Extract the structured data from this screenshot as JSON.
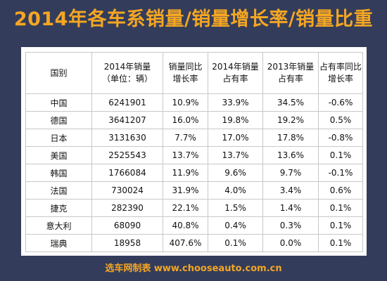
{
  "title": "2014年各车系销量/销量增长率/销量比重",
  "columns": [
    {
      "line1": "国别",
      "line2": ""
    },
    {
      "line1": "2014年销量",
      "line2": "（单位：辆）"
    },
    {
      "line1": "销量同比",
      "line2": "增长率"
    },
    {
      "line1": "2014年销量",
      "line2": "占有率"
    },
    {
      "line1": "2013年销量",
      "line2": "占有率"
    },
    {
      "line1": "占有率同比",
      "line2": "增长率"
    }
  ],
  "rows": [
    [
      "中国",
      "6241901",
      "10.9%",
      "33.9%",
      "34.5%",
      "-0.6%"
    ],
    [
      "德国",
      "3641207",
      "16.0%",
      "19.8%",
      "19.2%",
      "0.5%"
    ],
    [
      "日本",
      "3131630",
      "7.7%",
      "17.0%",
      "17.8%",
      "-0.8%"
    ],
    [
      "美国",
      "2525543",
      "13.7%",
      "13.7%",
      "13.6%",
      "0.1%"
    ],
    [
      "韩国",
      "1766084",
      "11.9%",
      "9.6%",
      "9.7%",
      "-0.1%"
    ],
    [
      "法国",
      "730024",
      "31.9%",
      "4.0%",
      "3.4%",
      "0.6%"
    ],
    [
      "捷克",
      "282390",
      "22.1%",
      "1.5%",
      "1.4%",
      "0.1%"
    ],
    [
      "意大利",
      "68090",
      "40.8%",
      "0.4%",
      "0.3%",
      "0.1%"
    ],
    [
      "瑞典",
      "18958",
      "407.6%",
      "0.1%",
      "0.0%",
      "0.1%"
    ]
  ],
  "footer": "选车网制表 www.chooseauto.com.cn",
  "colors": {
    "background": "#333d5b",
    "accent": "#f5a623",
    "table_bg": "#ffffff",
    "grid": "#c8c8c8"
  }
}
